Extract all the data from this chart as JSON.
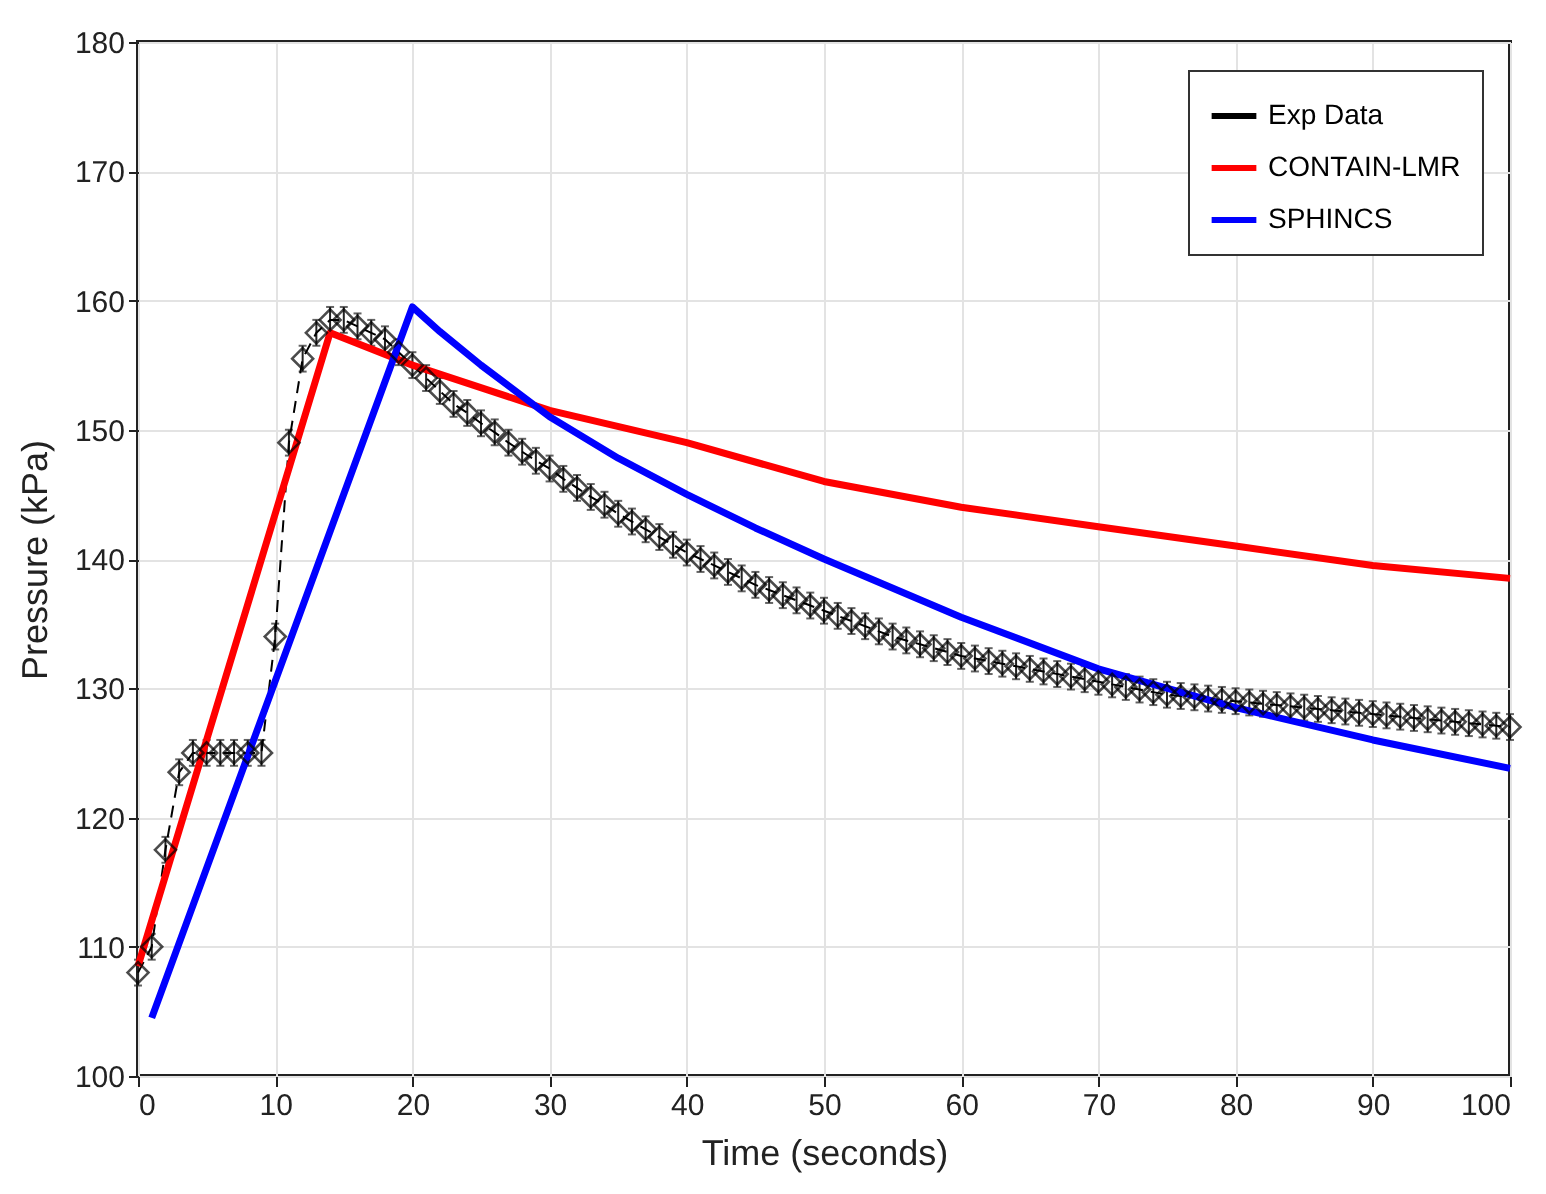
{
  "chart_data": {
    "type": "line",
    "xlabel": "Time (seconds)",
    "ylabel": "Pressure (kPa)",
    "xlim": [
      0,
      100
    ],
    "ylim": [
      100,
      180
    ],
    "xticks": [
      0,
      10,
      20,
      30,
      40,
      50,
      60,
      70,
      80,
      90,
      100
    ],
    "yticks": [
      100,
      110,
      120,
      130,
      140,
      150,
      160,
      170,
      180
    ],
    "grid": true,
    "legend": "top right",
    "series": [
      {
        "name": "Exp Data",
        "color": "#000000",
        "marker": "diamond",
        "line_style": "dashed",
        "x": [
          0,
          1,
          2,
          3,
          4,
          5,
          6,
          7,
          8,
          9,
          10,
          11,
          12,
          13,
          14,
          15,
          16,
          17,
          18,
          19,
          20,
          21,
          22,
          23,
          24,
          25,
          26,
          27,
          28,
          29,
          30,
          31,
          32,
          33,
          34,
          35,
          36,
          37,
          38,
          39,
          40,
          41,
          42,
          43,
          44,
          45,
          46,
          47,
          48,
          49,
          50,
          51,
          52,
          53,
          54,
          55,
          56,
          57,
          58,
          59,
          60,
          61,
          62,
          63,
          64,
          65,
          66,
          67,
          68,
          69,
          70,
          71,
          72,
          73,
          74,
          75,
          76,
          77,
          78,
          79,
          80,
          81,
          82,
          83,
          84,
          85,
          86,
          87,
          88,
          89,
          90,
          91,
          92,
          93,
          94,
          95,
          96,
          97,
          98,
          99,
          100
        ],
        "values": [
          108,
          110,
          117.5,
          123.5,
          125,
          125,
          125,
          125,
          125,
          125,
          134,
          149,
          155.5,
          157.5,
          158.5,
          158.5,
          158,
          157.5,
          157,
          156,
          155,
          154,
          153,
          152,
          151.3,
          150.5,
          149.8,
          149,
          148.3,
          147.6,
          147,
          146.2,
          145.5,
          144.8,
          144.2,
          143.5,
          142.9,
          142.3,
          141.7,
          141.1,
          140.5,
          140,
          139.5,
          139,
          138.5,
          138,
          137.6,
          137.2,
          136.8,
          136.4,
          136,
          135.6,
          135.2,
          134.8,
          134.4,
          134,
          133.7,
          133.4,
          133.1,
          132.8,
          132.5,
          132.3,
          132.1,
          131.9,
          131.7,
          131.5,
          131.3,
          131.1,
          130.9,
          130.7,
          130.5,
          130.3,
          130.1,
          129.9,
          129.7,
          129.5,
          129.4,
          129.3,
          129.2,
          129.1,
          129,
          128.9,
          128.8,
          128.7,
          128.6,
          128.5,
          128.4,
          128.3,
          128.2,
          128.1,
          128,
          127.9,
          127.8,
          127.7,
          127.6,
          127.5,
          127.4,
          127.3,
          127.2,
          127.1,
          127
        ],
        "errors": [
          1,
          1,
          1,
          1,
          1,
          1,
          1,
          1,
          1,
          1,
          1,
          1,
          1,
          1,
          1,
          1,
          1,
          1,
          1,
          1,
          1,
          1,
          1,
          1,
          1,
          1,
          1,
          1,
          1,
          1,
          1,
          1,
          1,
          1,
          1,
          1,
          1,
          1,
          1,
          1,
          1,
          1,
          1,
          1,
          1,
          1,
          1,
          1,
          1,
          1,
          1,
          1,
          1,
          1,
          1,
          1,
          1,
          1,
          1,
          1,
          1,
          1,
          1,
          1,
          1,
          1,
          1,
          1,
          1,
          1,
          1,
          1,
          1,
          1,
          1,
          1,
          1,
          1,
          1,
          1,
          1,
          1,
          1,
          1,
          1,
          1,
          1,
          1,
          1,
          1,
          1,
          1,
          1,
          1,
          1,
          1,
          1,
          1,
          1,
          1,
          1
        ]
      },
      {
        "name": "CONTAIN-LMR",
        "color": "#ff0000",
        "marker": "none",
        "line_style": "solid",
        "x": [
          0,
          14,
          20,
          30,
          40,
          50,
          60,
          70,
          80,
          90,
          100
        ],
        "values": [
          108.5,
          157.5,
          155,
          151.5,
          149,
          146,
          144,
          142.5,
          141,
          139.5,
          138.5
        ]
      },
      {
        "name": "SPHINCS",
        "color": "#0000ff",
        "marker": "none",
        "line_style": "solid",
        "x": [
          1,
          20,
          22,
          25,
          30,
          35,
          40,
          45,
          50,
          60,
          70,
          80,
          90,
          100
        ],
        "values": [
          104.5,
          159.5,
          157.6,
          155,
          151,
          147.8,
          145,
          142.4,
          140,
          135.5,
          131.5,
          128.5,
          126,
          123.8
        ]
      }
    ]
  }
}
